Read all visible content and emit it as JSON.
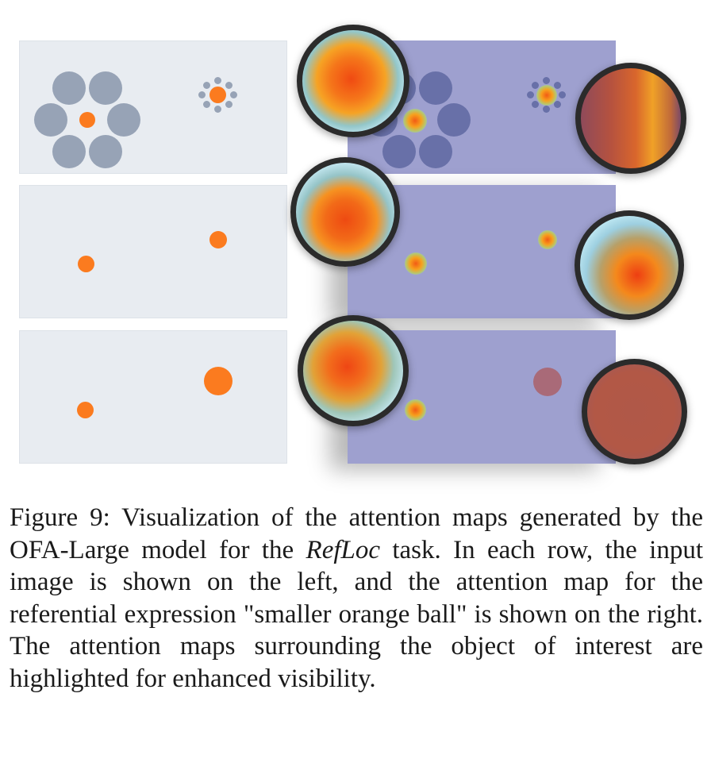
{
  "caption": {
    "figure_label": "Figure 9:",
    "text_before_italic": " Visualization of the attention maps generated by the OFA-Large model for the ",
    "italic_term": "RefLoc",
    "text_after_italic": " task. In each row, the input image is shown on the left, and the atten­tion map for the referential expression \"smaller orange ball\" is shown on the right. The attention maps surround­ing the object of interest are highlighted for enhanced visibility."
  },
  "colors": {
    "input_background": "#e8ecf1",
    "attention_background": "#9ea0cf",
    "orange_ball": "#fb7b1f",
    "grey_circle": "#97a3b6",
    "lens_border": "#2b2b2b"
  }
}
